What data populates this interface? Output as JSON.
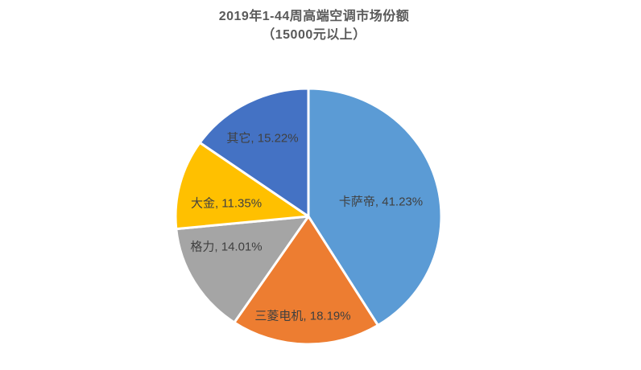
{
  "title": {
    "line1": "2019年1-44周高端空调市场份额",
    "line2": "（15000元以上）"
  },
  "chart_data": {
    "type": "pie",
    "title": "2019年1-44周高端空调市场份额（15000元以上）",
    "start_angle_deg": 0,
    "direction": "clockwise",
    "unit": "%",
    "total": 100.0,
    "segments": [
      {
        "name": "卡萨帝",
        "value": 41.23,
        "color": "#5B9BD5",
        "label": "卡萨帝, 41.23%"
      },
      {
        "name": "三菱电机",
        "value": 18.19,
        "color": "#ED7D31",
        "label": "三菱电机, 18.19%"
      },
      {
        "name": "格力",
        "value": 14.01,
        "color": "#A5A5A5",
        "label": "格力, 14.01%"
      },
      {
        "name": "大金",
        "value": 11.35,
        "color": "#FFC000",
        "label": "大金, 11.35%"
      },
      {
        "name": "其它",
        "value": 15.22,
        "color": "#4472C4",
        "label": "其它, 15.22%"
      }
    ],
    "legend": "none",
    "labels_position": "inside"
  },
  "colors": {
    "background": "#FFFFFF",
    "title_text": "#595959",
    "label_text": "#404040",
    "slice_border": "#FFFFFF"
  }
}
